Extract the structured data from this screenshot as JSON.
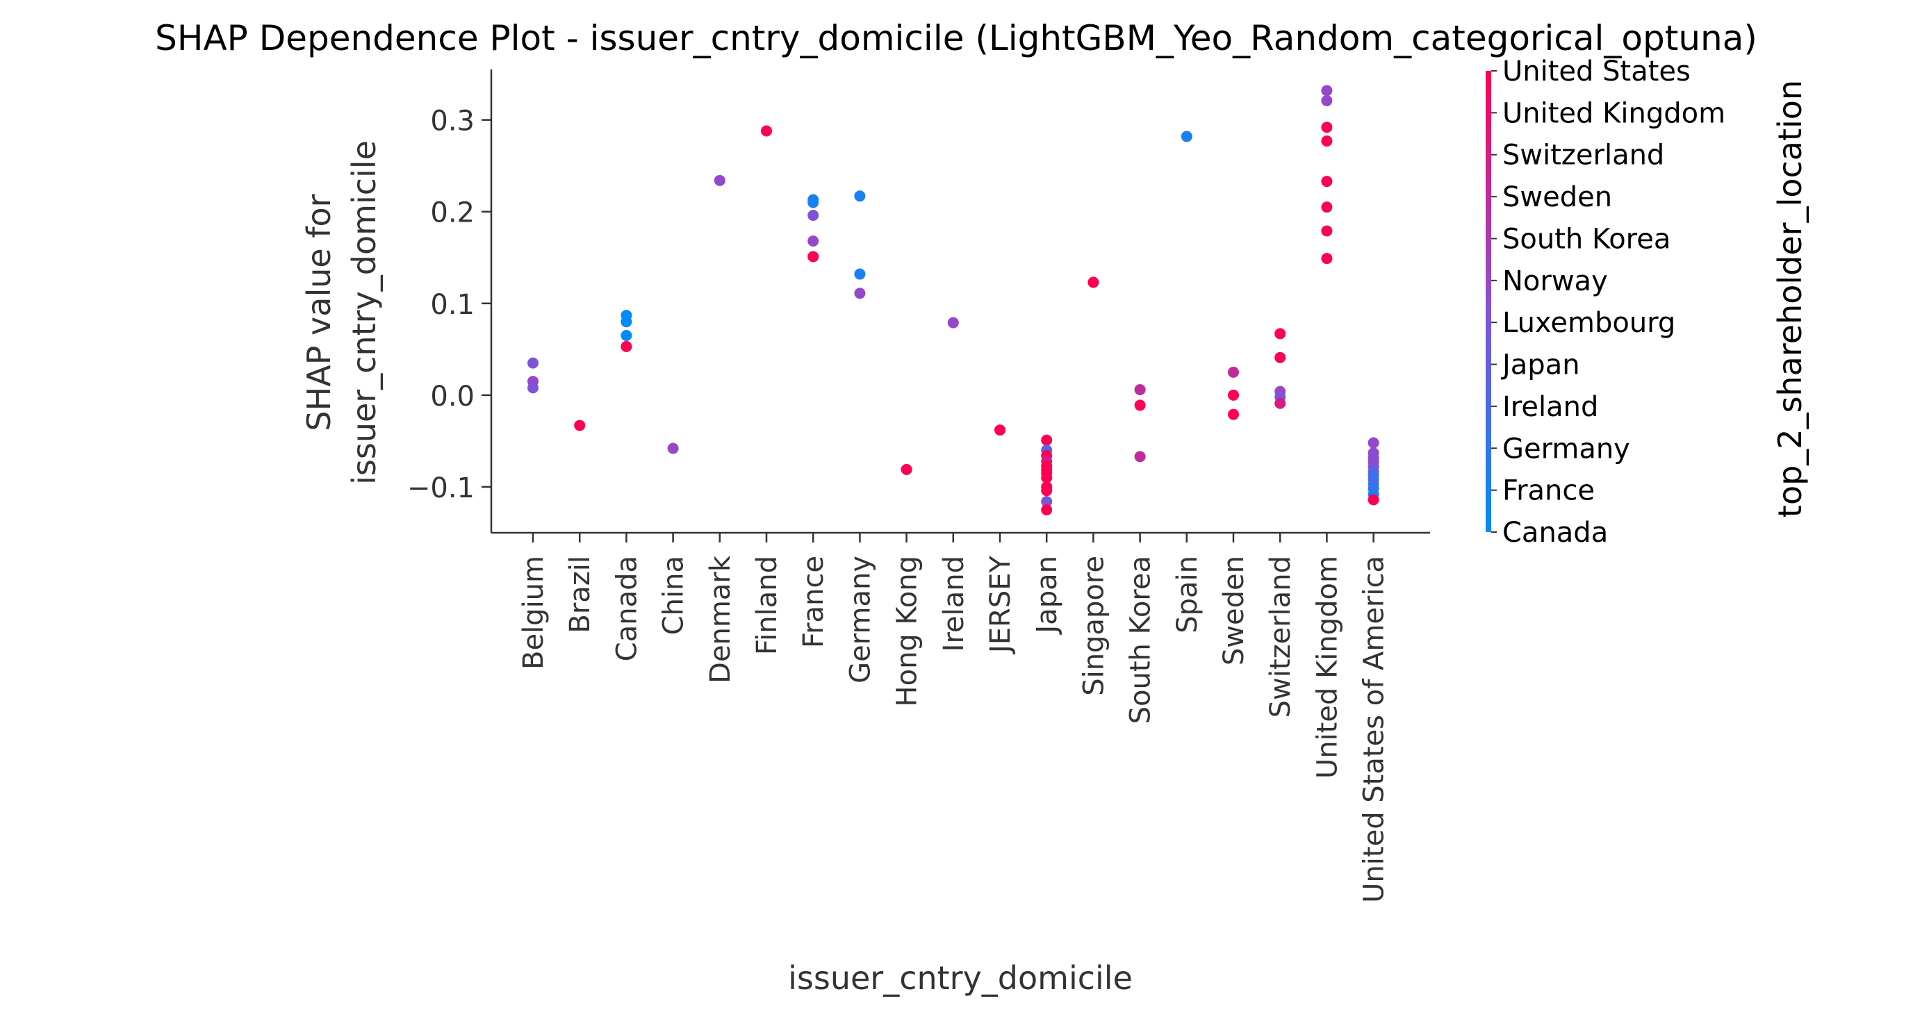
{
  "chart_data": {
    "type": "scatter",
    "title": "SHAP Dependence Plot - issuer_cntry_domicile (LightGBM_Yeo_Random_categorical_optuna)",
    "xlabel": "issuer_cntry_domicile",
    "ylabel_line1": "SHAP value for",
    "ylabel_line2": "issuer_cntry_domicile",
    "ylim": [
      -0.15,
      0.355
    ],
    "yticks": [
      {
        "value": -0.1,
        "label": "−0.1"
      },
      {
        "value": 0.0,
        "label": "0.0"
      },
      {
        "value": 0.1,
        "label": "0.1"
      },
      {
        "value": 0.2,
        "label": "0.2"
      },
      {
        "value": 0.3,
        "label": "0.3"
      }
    ],
    "categories": [
      "Belgium",
      "Brazil",
      "Canada",
      "China",
      "Denmark",
      "Finland",
      "France",
      "Germany",
      "Hong Kong",
      "Ireland",
      "JERSEY",
      "Japan",
      "Singapore",
      "South Korea",
      "Spain",
      "Sweden",
      "Switzerland",
      "United Kingdom",
      "United States of America"
    ],
    "colorbar": {
      "label": "top_2_shareholder_location",
      "ticks": [
        "United States",
        "United Kingdom",
        "Switzerland",
        "Sweden",
        "South Korea",
        "Norway",
        "Luxembourg",
        "Japan",
        "Ireland",
        "Germany",
        "France",
        "Canada"
      ],
      "color_low": "#008bfb",
      "color_high": "#ff0052"
    },
    "grid": false,
    "points": [
      {
        "x": "Belgium",
        "y": 0.035,
        "c": 5
      },
      {
        "x": "Belgium",
        "y": 0.015,
        "c": 6
      },
      {
        "x": "Belgium",
        "y": 0.008,
        "c": 5
      },
      {
        "x": "Brazil",
        "y": -0.033,
        "c": 11
      },
      {
        "x": "Canada",
        "y": 0.087,
        "c": 0
      },
      {
        "x": "Canada",
        "y": 0.08,
        "c": 0
      },
      {
        "x": "Canada",
        "y": 0.065,
        "c": 0
      },
      {
        "x": "Canada",
        "y": 0.053,
        "c": 11
      },
      {
        "x": "China",
        "y": -0.058,
        "c": 6
      },
      {
        "x": "Denmark",
        "y": 0.234,
        "c": 6
      },
      {
        "x": "Finland",
        "y": 0.288,
        "c": 11
      },
      {
        "x": "France",
        "y": 0.213,
        "c": 1
      },
      {
        "x": "France",
        "y": 0.21,
        "c": 1
      },
      {
        "x": "France",
        "y": 0.196,
        "c": 5
      },
      {
        "x": "France",
        "y": 0.168,
        "c": 6
      },
      {
        "x": "France",
        "y": 0.151,
        "c": 11
      },
      {
        "x": "Germany",
        "y": 0.217,
        "c": 1
      },
      {
        "x": "Germany",
        "y": 0.132,
        "c": 1
      },
      {
        "x": "Germany",
        "y": 0.111,
        "c": 6
      },
      {
        "x": "Hong Kong",
        "y": -0.081,
        "c": 11
      },
      {
        "x": "Ireland",
        "y": 0.079,
        "c": 6
      },
      {
        "x": "JERSEY",
        "y": -0.038,
        "c": 11
      },
      {
        "x": "Japan",
        "y": -0.049,
        "c": 11
      },
      {
        "x": "Japan",
        "y": -0.06,
        "c": 4
      },
      {
        "x": "Japan",
        "y": -0.066,
        "c": 11
      },
      {
        "x": "Japan",
        "y": -0.072,
        "c": 9
      },
      {
        "x": "Japan",
        "y": -0.077,
        "c": 11
      },
      {
        "x": "Japan",
        "y": -0.081,
        "c": 11
      },
      {
        "x": "Japan",
        "y": -0.085,
        "c": 11
      },
      {
        "x": "Japan",
        "y": -0.09,
        "c": 11
      },
      {
        "x": "Japan",
        "y": -0.1,
        "c": 11
      },
      {
        "x": "Japan",
        "y": -0.104,
        "c": 11
      },
      {
        "x": "Japan",
        "y": -0.116,
        "c": 5
      },
      {
        "x": "Japan",
        "y": -0.125,
        "c": 11
      },
      {
        "x": "Singapore",
        "y": 0.123,
        "c": 11
      },
      {
        "x": "South Korea",
        "y": 0.006,
        "c": 8
      },
      {
        "x": "South Korea",
        "y": -0.011,
        "c": 11
      },
      {
        "x": "South Korea",
        "y": -0.067,
        "c": 8
      },
      {
        "x": "Spain",
        "y": 0.282,
        "c": 1
      },
      {
        "x": "Sweden",
        "y": 0.025,
        "c": 8
      },
      {
        "x": "Sweden",
        "y": 0.0,
        "c": 11
      },
      {
        "x": "Sweden",
        "y": -0.021,
        "c": 11
      },
      {
        "x": "Switzerland",
        "y": 0.067,
        "c": 11
      },
      {
        "x": "Switzerland",
        "y": 0.041,
        "c": 11
      },
      {
        "x": "Switzerland",
        "y": 0.004,
        "c": 6
      },
      {
        "x": "Switzerland",
        "y": -0.002,
        "c": 5
      },
      {
        "x": "Switzerland",
        "y": -0.009,
        "c": 9
      },
      {
        "x": "United Kingdom",
        "y": 0.332,
        "c": 6
      },
      {
        "x": "United Kingdom",
        "y": 0.321,
        "c": 6
      },
      {
        "x": "United Kingdom",
        "y": 0.292,
        "c": 11
      },
      {
        "x": "United Kingdom",
        "y": 0.277,
        "c": 11
      },
      {
        "x": "United Kingdom",
        "y": 0.233,
        "c": 11
      },
      {
        "x": "United Kingdom",
        "y": 0.205,
        "c": 11
      },
      {
        "x": "United Kingdom",
        "y": 0.179,
        "c": 11
      },
      {
        "x": "United Kingdom",
        "y": 0.149,
        "c": 11
      },
      {
        "x": "United States of America",
        "y": -0.052,
        "c": 6
      },
      {
        "x": "United States of America",
        "y": -0.063,
        "c": 6
      },
      {
        "x": "United States of America",
        "y": -0.068,
        "c": 5
      },
      {
        "x": "United States of America",
        "y": -0.073,
        "c": 6
      },
      {
        "x": "United States of America",
        "y": -0.078,
        "c": 5
      },
      {
        "x": "United States of America",
        "y": -0.083,
        "c": 4
      },
      {
        "x": "United States of America",
        "y": -0.087,
        "c": 3
      },
      {
        "x": "United States of America",
        "y": -0.092,
        "c": 2
      },
      {
        "x": "United States of America",
        "y": -0.097,
        "c": 3
      },
      {
        "x": "United States of America",
        "y": -0.102,
        "c": 2
      },
      {
        "x": "United States of America",
        "y": -0.108,
        "c": 1
      },
      {
        "x": "United States of America",
        "y": -0.114,
        "c": 11
      }
    ]
  }
}
